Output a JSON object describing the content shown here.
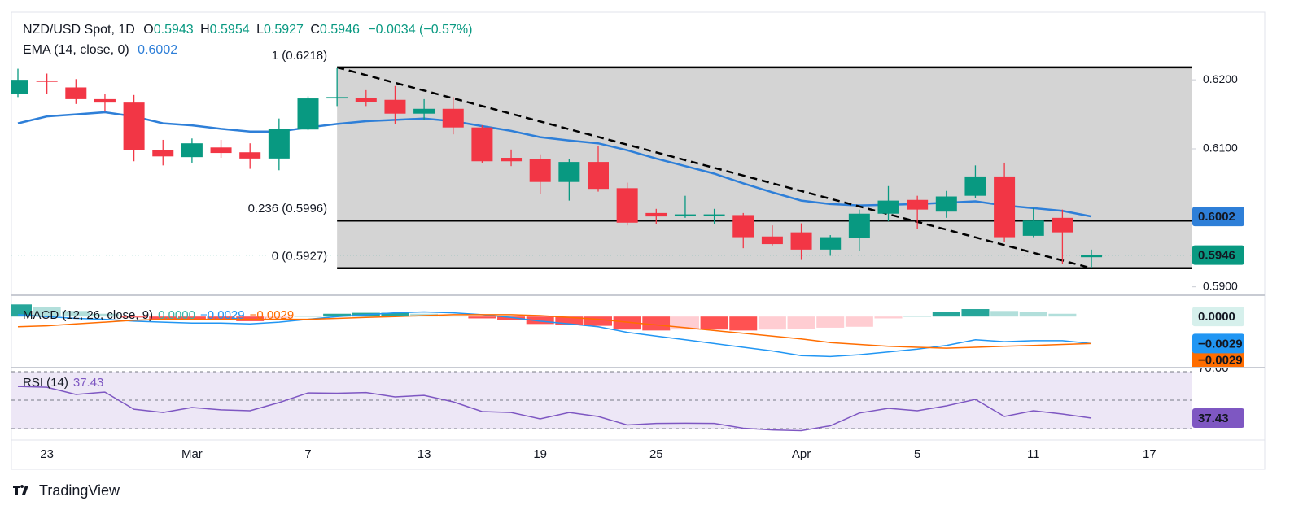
{
  "chart_data": {
    "type": "candlestick",
    "symbol": "NZD/USD Spot, 1D",
    "ohlc_labels": [
      "O",
      "H",
      "L",
      "C"
    ],
    "change": "−0.0034 (−0.57%)",
    "categories": [
      null,
      "23",
      null,
      null,
      null,
      null,
      "Mar",
      null,
      null,
      null,
      "7",
      null,
      null,
      null,
      "13",
      null,
      null,
      null,
      "19",
      null,
      null,
      null,
      "25",
      null,
      null,
      null,
      null,
      "Apr",
      null,
      null,
      null,
      "5",
      null,
      null,
      null,
      "11",
      null,
      null
    ],
    "x_future_labels": [
      null,
      "17"
    ],
    "open": [
      0.618,
      0.6199,
      0.6189,
      0.6172,
      0.6167,
      0.6098,
      0.6088,
      0.6102,
      0.6095,
      0.6086,
      0.6128,
      0.6173,
      0.6174,
      0.6171,
      0.6151,
      0.6158,
      0.6131,
      0.6087,
      0.6085,
      0.6052,
      0.6081,
      0.6043,
      0.6007,
      0.6004,
      0.6004,
      0.6004,
      0.5973,
      0.5979,
      0.5954,
      0.5971,
      0.6006,
      0.6026,
      0.6009,
      0.6032,
      0.606,
      0.5974,
      0.6,
      0.5943
    ],
    "high": [
      0.6216,
      0.6209,
      0.6201,
      0.618,
      0.6178,
      0.6113,
      0.6115,
      0.6113,
      0.6108,
      0.6144,
      0.6176,
      0.6218,
      0.6185,
      0.6191,
      0.6172,
      0.6175,
      0.6134,
      0.6099,
      0.6092,
      0.6085,
      0.6104,
      0.6051,
      0.6013,
      0.6032,
      0.6013,
      0.6007,
      0.5989,
      0.5992,
      0.5975,
      0.6012,
      0.6046,
      0.6032,
      0.6039,
      0.6076,
      0.608,
      0.6014,
      0.6012,
      0.5954
    ],
    "low": [
      0.6175,
      0.618,
      0.6165,
      0.6154,
      0.6082,
      0.6076,
      0.608,
      0.6087,
      0.6071,
      0.6069,
      0.6127,
      0.6162,
      0.6162,
      0.6136,
      0.6142,
      0.6121,
      0.608,
      0.6075,
      0.6035,
      0.6025,
      0.6038,
      0.5989,
      0.5991,
      0.6,
      0.5991,
      0.5956,
      0.596,
      0.5939,
      0.5945,
      0.5952,
      0.5995,
      0.5984,
      0.6,
      0.6029,
      0.5965,
      0.5972,
      0.5933,
      0.5927
    ],
    "close": [
      0.62,
      0.6197,
      0.6172,
      0.6167,
      0.6098,
      0.6089,
      0.6108,
      0.6094,
      0.6086,
      0.6129,
      0.6173,
      0.6175,
      0.6168,
      0.6151,
      0.6158,
      0.6131,
      0.6082,
      0.6082,
      0.6052,
      0.6081,
      0.6042,
      0.5993,
      0.6002,
      0.6005,
      0.6005,
      0.5972,
      0.5962,
      0.5954,
      0.5972,
      0.6006,
      0.6025,
      0.6012,
      0.6031,
      0.606,
      0.5972,
      0.5996,
      0.5979,
      0.5946
    ],
    "up_color": "#089981",
    "down_color": "#f23645",
    "ylim": [
      0.5889,
      0.6298
    ],
    "yticks": [
      {
        "value": 0.62,
        "label": "0.6200"
      },
      {
        "value": 0.61,
        "label": "0.6100"
      },
      {
        "value": 0.59,
        "label": "0.5900"
      }
    ],
    "ema": {
      "name": "EMA (14, close, 0)",
      "color": "#2e7fd8",
      "values": [
        0.6137,
        0.6147,
        0.615,
        0.6153,
        0.6147,
        0.6137,
        0.6134,
        0.6129,
        0.6125,
        0.6125,
        0.6131,
        0.6136,
        0.614,
        0.6142,
        0.6144,
        0.614,
        0.6133,
        0.6126,
        0.6117,
        0.6112,
        0.6108,
        0.6098,
        0.6086,
        0.6075,
        0.6064,
        0.605,
        0.6037,
        0.6025,
        0.602,
        0.6018,
        0.6019,
        0.602,
        0.6022,
        0.6024,
        0.6018,
        0.6014,
        0.601,
        0.6002
      ]
    },
    "fib": {
      "fill": "#cccccc",
      "levels": [
        {
          "label": "1 (0.6218)",
          "price": 0.6218
        },
        {
          "label": "0.236 (0.5996)",
          "price": 0.5996
        },
        {
          "label": "0 (0.5927)",
          "price": 0.5927
        }
      ]
    },
    "trendline": {
      "x": [
        11,
        37
      ],
      "values": [
        0.6218,
        0.5927
      ]
    },
    "macd": {
      "name": "MACD (12, 26, close, 9)",
      "legend_values": [
        "0.0000",
        "−0.0029",
        "−0.0029"
      ],
      "ylim": [
        -0.0054,
        0.0022
      ],
      "hist": [
        0.0013,
        0.001,
        0.0006,
        0.0003,
        -0.0001,
        -0.0003,
        -0.0004,
        -0.0004,
        -0.0005,
        -0.0002,
        0.0001,
        0.0003,
        0.0004,
        0.0004,
        0.0003,
        0.0001,
        -0.0002,
        -0.0004,
        -0.0008,
        -0.0009,
        -0.001,
        -0.0014,
        -0.0015,
        -0.0014,
        -0.0014,
        -0.0015,
        -0.0014,
        -0.0013,
        -0.0012,
        -0.0011,
        -0.0002,
        0.0001,
        0.0005,
        0.0008,
        0.0006,
        0.0005,
        0.0003,
        0.0
      ],
      "macd": [
        0.0002,
        0.0,
        -0.0002,
        -0.0003,
        -0.0005,
        -0.0006,
        -0.0007,
        -0.0007,
        -0.0008,
        -0.0006,
        -0.0003,
        0.0,
        0.0002,
        0.0004,
        0.0005,
        0.0004,
        0.0002,
        -0.0001,
        -0.0005,
        -0.0008,
        -0.0011,
        -0.0017,
        -0.0021,
        -0.0025,
        -0.0029,
        -0.0033,
        -0.0037,
        -0.0042,
        -0.0043,
        -0.0041,
        -0.0038,
        -0.0035,
        -0.0031,
        -0.0025,
        -0.0027,
        -0.0026,
        -0.0026,
        -0.0029
      ],
      "signal": [
        -0.0011,
        -0.001,
        -0.0008,
        -0.0006,
        -0.0004,
        -0.0003,
        -0.0003,
        -0.0003,
        -0.0003,
        -0.0003,
        -0.0003,
        -0.0002,
        -0.0001,
        0.0,
        0.0001,
        0.0002,
        0.0002,
        0.0002,
        0.0001,
        -0.0001,
        -0.0003,
        -0.0006,
        -0.0009,
        -0.0012,
        -0.0015,
        -0.0018,
        -0.0021,
        -0.0024,
        -0.0028,
        -0.003,
        -0.0032,
        -0.0033,
        -0.0034,
        -0.0033,
        -0.0032,
        -0.0031,
        -0.003,
        -0.0029
      ],
      "hist_colors": [
        "#26a69a",
        "#b2dfdb",
        "#ff5252",
        "#ffcdd2"
      ],
      "hist_label_color": "#3bb3a7",
      "macd_color": "#2196f3",
      "signal_color": "#ff6d00"
    },
    "rsi": {
      "name": "RSI (14)",
      "color": "#7e57c2",
      "band_color": "#ede7f6",
      "ylim": [
        22.6,
        72.3
      ],
      "levels": [
        70,
        50,
        30
      ],
      "yticks": [
        {
          "value": 70,
          "label": "70.00"
        }
      ],
      "values": [
        59.7,
        59.1,
        54.0,
        55.7,
        43.7,
        41.4,
        44.9,
        43.2,
        42.6,
        48.3,
        55.1,
        54.9,
        55.4,
        52.3,
        53.4,
        48.9,
        42.0,
        41.4,
        36.9,
        41.4,
        38.6,
        32.6,
        33.7,
        33.8,
        33.7,
        30.3,
        29.1,
        28.6,
        32.0,
        41.0,
        44.3,
        42.6,
        46.0,
        50.6,
        38.6,
        42.6,
        40.3,
        37.43
      ]
    },
    "brand": "TradingView"
  }
}
